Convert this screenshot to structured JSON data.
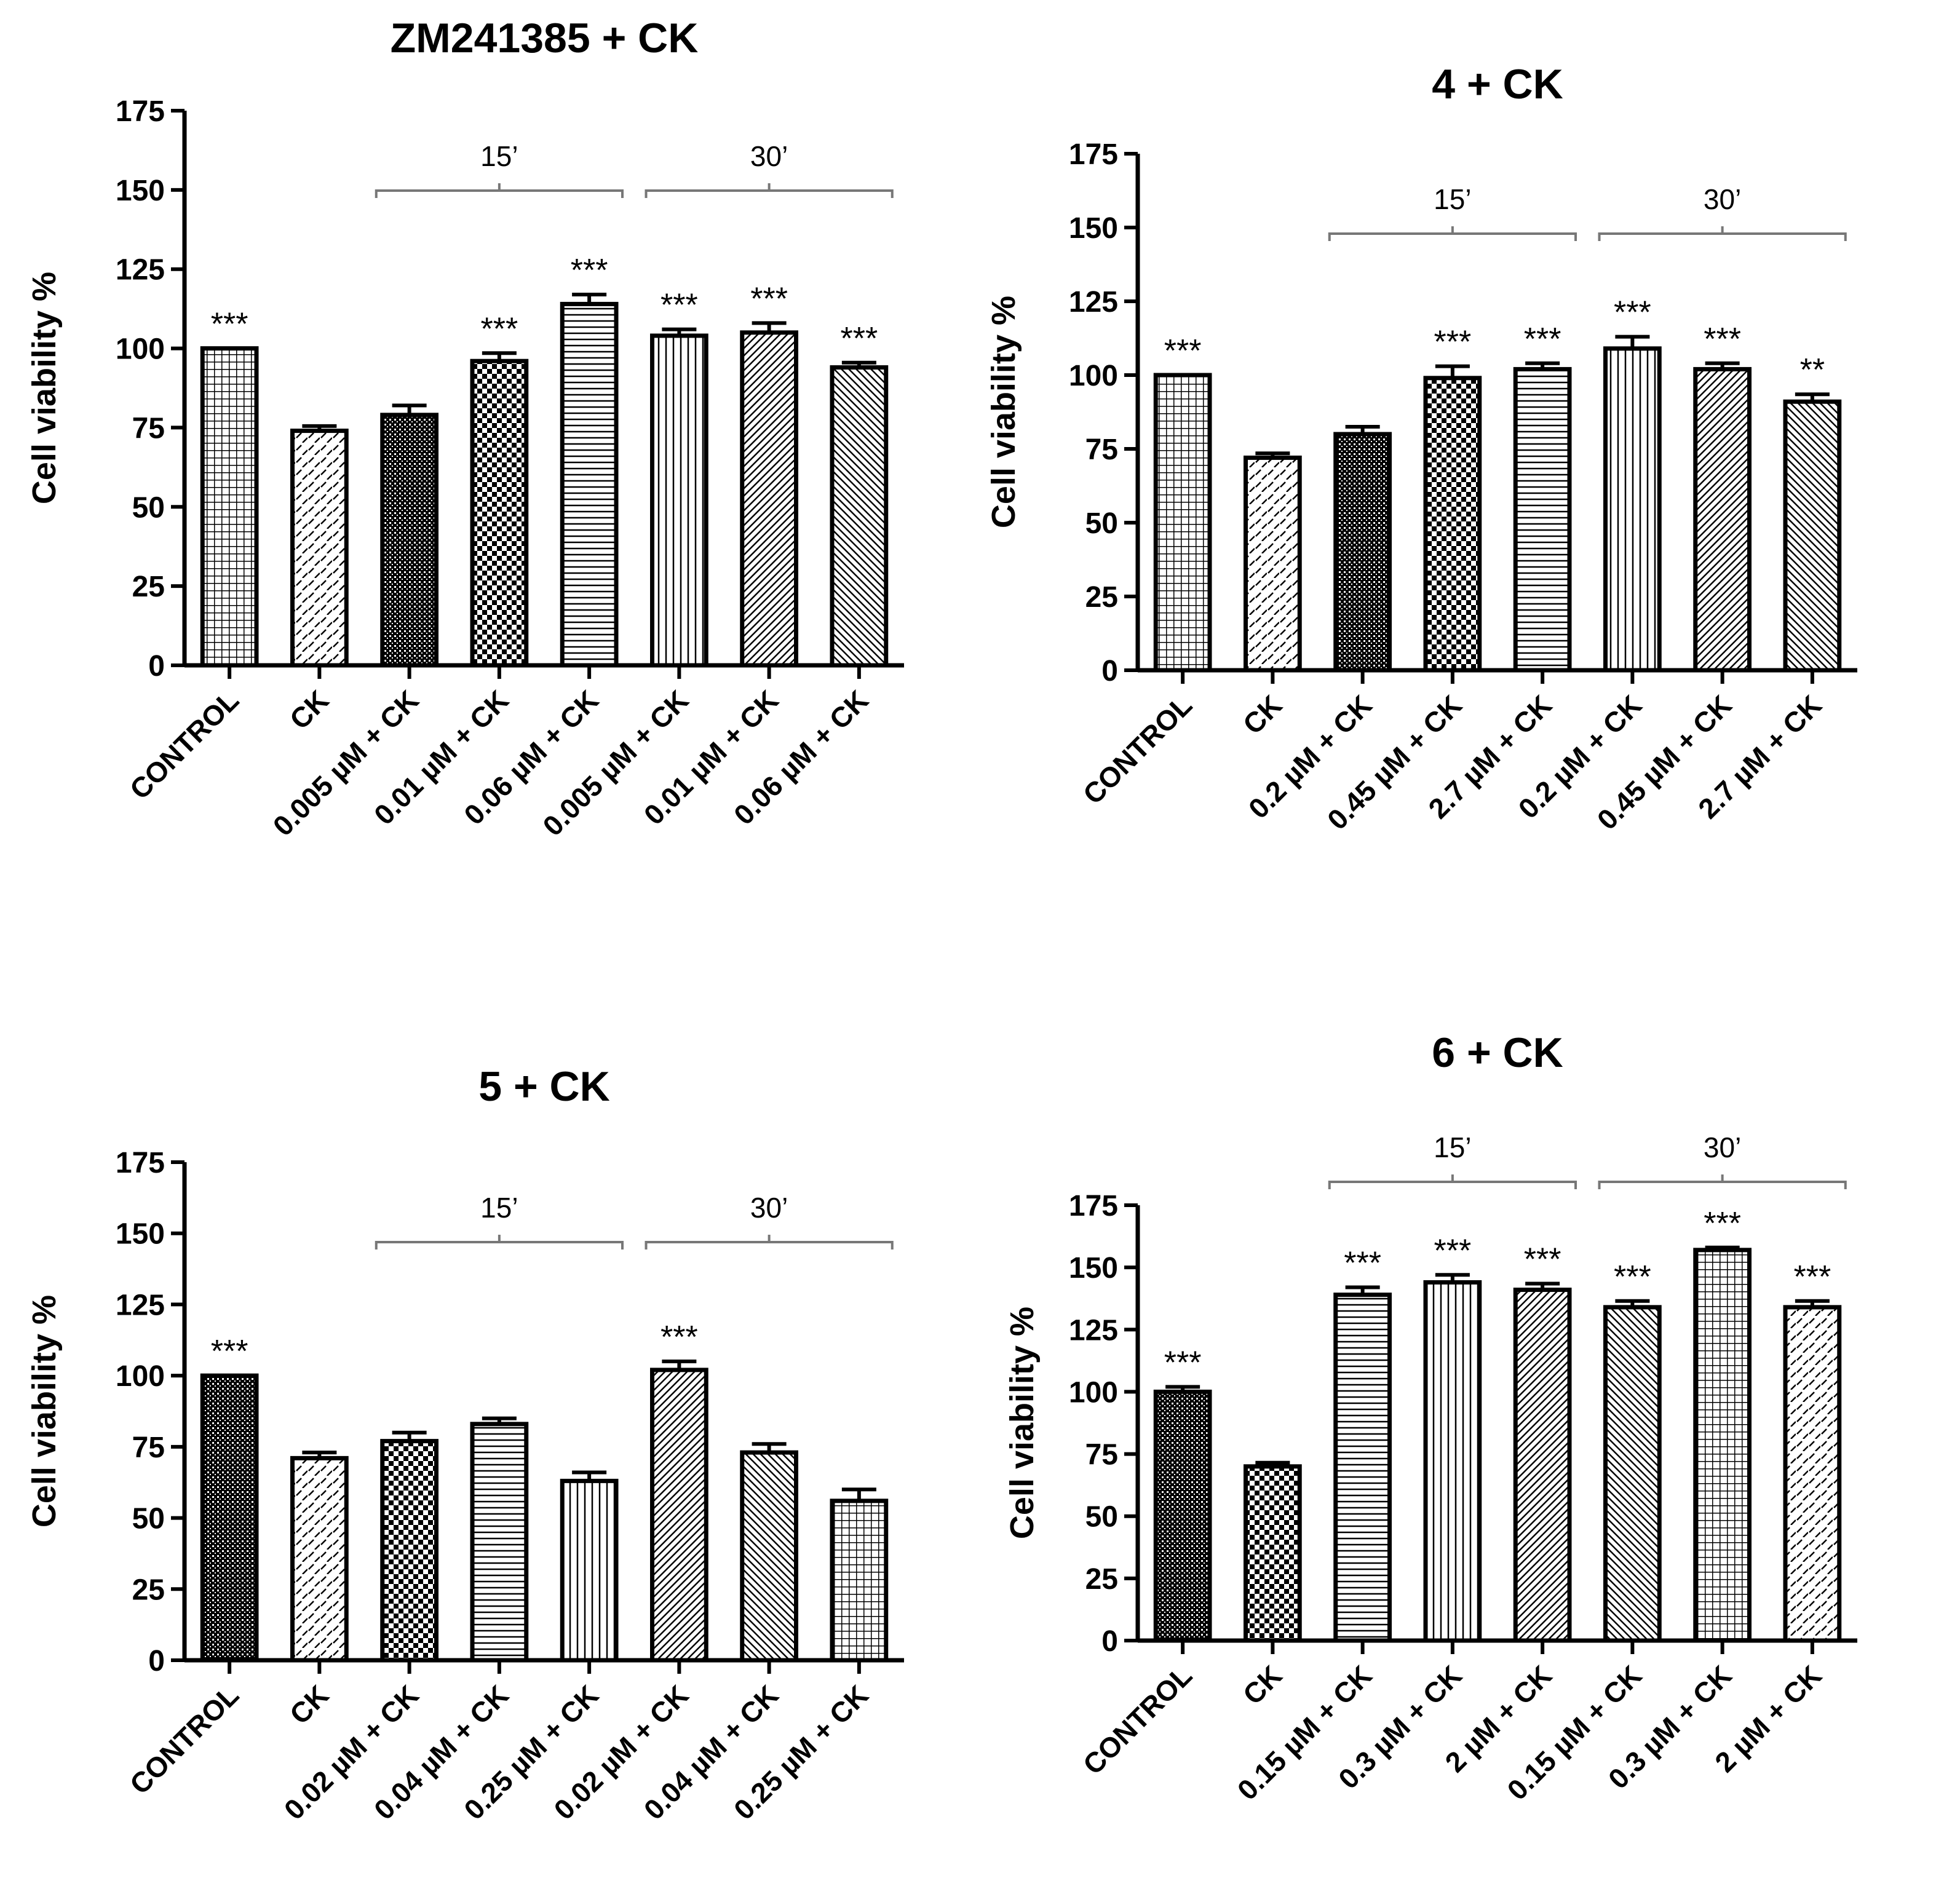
{
  "figure": {
    "background": "#ffffff",
    "bar_stroke": "#000000",
    "bracket_color": "#777777"
  },
  "chart_data": [
    {
      "type": "bar",
      "title": "ZM241385 + CK",
      "ylabel": "Cell viability %",
      "xlabel": "",
      "ylim": [
        0,
        175
      ],
      "yticks": [
        0,
        25,
        50,
        75,
        100,
        125,
        150,
        175
      ],
      "categories": [
        "CONTROL",
        "CK",
        "0.005 µM + CK",
        "0.01 µM + CK",
        "0.06 µM + CK",
        "0.005 µM + CK",
        "0.01 µM + CK",
        "0.06 µM + CK"
      ],
      "values": [
        100,
        74,
        79,
        96,
        114,
        104,
        105,
        94
      ],
      "errors": [
        0,
        1.5,
        3,
        2.5,
        3,
        2,
        3,
        1.5
      ],
      "significance": [
        "***",
        "",
        "",
        "***",
        "***",
        "***",
        "***",
        "***"
      ],
      "patterns": [
        "grid",
        "diag-dash",
        "dots-fine",
        "checker",
        "hlines",
        "vlines",
        "diag-right",
        "diag-left"
      ],
      "groups": [
        {
          "label": "15’",
          "start": 2,
          "end": 4
        },
        {
          "label": "30’",
          "start": 5,
          "end": 7
        }
      ]
    },
    {
      "type": "bar",
      "title": "4 + CK",
      "ylabel": "Cell viability %",
      "xlabel": "",
      "ylim": [
        0,
        175
      ],
      "yticks": [
        0,
        25,
        50,
        75,
        100,
        125,
        150,
        175
      ],
      "categories": [
        "CONTROL",
        "CK",
        "0.2 µM + CK",
        "0.45 µM + CK",
        "2.7 µM + CK",
        "0.2 µM + CK",
        "0.45 µM + CK",
        "2.7 µM + CK"
      ],
      "values": [
        100,
        72,
        80,
        99,
        102,
        109,
        102,
        91
      ],
      "errors": [
        0,
        1.5,
        2.5,
        4,
        2,
        4,
        2,
        2.5
      ],
      "significance": [
        "***",
        "",
        "",
        "***",
        "***",
        "***",
        "***",
        "**"
      ],
      "patterns": [
        "grid",
        "diag-dash",
        "dots-fine",
        "checker",
        "hlines",
        "vlines",
        "diag-right",
        "diag-left"
      ],
      "groups": [
        {
          "label": "15’",
          "start": 2,
          "end": 4
        },
        {
          "label": "30’",
          "start": 5,
          "end": 7
        }
      ]
    },
    {
      "type": "bar",
      "title": "5 + CK",
      "ylabel": "Cell viability %",
      "xlabel": "",
      "ylim": [
        0,
        175
      ],
      "yticks": [
        0,
        25,
        50,
        75,
        100,
        125,
        150,
        175
      ],
      "categories": [
        "CONTROL",
        "CK",
        "0.02 µM + CK",
        "0.04 µM + CK",
        "0.25 µM + CK",
        "0.02 µM + CK",
        "0.04 µM + CK",
        "0.25 µM + CK"
      ],
      "values": [
        100,
        71,
        77,
        83,
        63,
        102,
        73,
        56
      ],
      "errors": [
        0,
        2,
        3,
        2,
        3,
        3,
        3,
        4
      ],
      "significance": [
        "***",
        "",
        "",
        "",
        "",
        "***",
        "",
        ""
      ],
      "patterns": [
        "dots-fine",
        "diag-dash",
        "checker",
        "hlines",
        "vlines",
        "diag-right",
        "diag-left",
        "grid"
      ],
      "groups": [
        {
          "label": "15’",
          "start": 2,
          "end": 4
        },
        {
          "label": "30’",
          "start": 5,
          "end": 7
        }
      ]
    },
    {
      "type": "bar",
      "title": "6 + CK",
      "ylabel": "Cell viability %",
      "xlabel": "",
      "ylim": [
        0,
        175
      ],
      "yticks": [
        0,
        25,
        50,
        75,
        100,
        125,
        150,
        175
      ],
      "categories": [
        "CONTROL",
        "CK",
        "0.15 µM + CK",
        "0.3 µM + CK",
        "2 µM + CK",
        "0.15 µM + CK",
        "0.3 µM + CK",
        "2 µM + CK"
      ],
      "values": [
        100,
        70,
        139,
        144,
        141,
        134,
        157,
        134
      ],
      "errors": [
        2,
        1.5,
        3,
        3,
        2.5,
        2.5,
        1,
        2.5
      ],
      "significance": [
        "***",
        "",
        "***",
        "***",
        "***",
        "***",
        "***",
        "***"
      ],
      "patterns": [
        "dots-fine",
        "checker",
        "hlines",
        "vlines",
        "diag-right",
        "diag-left",
        "grid",
        "diag-dash"
      ],
      "groups": [
        {
          "label": "15’",
          "start": 2,
          "end": 4
        },
        {
          "label": "30’",
          "start": 5,
          "end": 7
        }
      ]
    }
  ]
}
